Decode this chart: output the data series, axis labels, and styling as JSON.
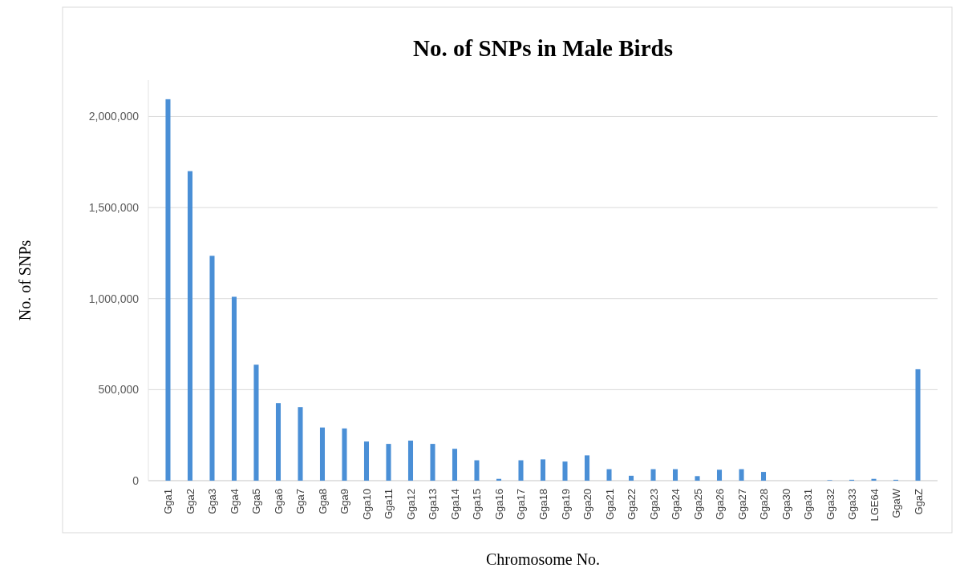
{
  "chart_data": {
    "type": "bar",
    "title": "No. of SNPs in Male Birds",
    "xlabel": "Chromosome No.",
    "ylabel": "No. of SNPs",
    "categories": [
      "Gga1",
      "Gga2",
      "Gga3",
      "Gga4",
      "Gga5",
      "Gga6",
      "Gga7",
      "Gga8",
      "Gga9",
      "Gga10",
      "Gga11",
      "Gga12",
      "Gga13",
      "Gga14",
      "Gga15",
      "Gga16",
      "Gga17",
      "Gga18",
      "Gga19",
      "Gga20",
      "Gga21",
      "Gga22",
      "Gga23",
      "Gga24",
      "Gga25",
      "Gga26",
      "Gga27",
      "Gga28",
      "Gga30",
      "Gga31",
      "Gga32",
      "Gga33",
      "LGE64",
      "GgaW",
      "GgaZ"
    ],
    "values": [
      2095000,
      1700000,
      1235000,
      1010000,
      637000,
      426000,
      404000,
      292000,
      287000,
      215000,
      202000,
      220000,
      202000,
      175000,
      112000,
      10000,
      112000,
      117000,
      105000,
      139000,
      63000,
      27000,
      63000,
      63000,
      25000,
      60000,
      63000,
      48000,
      0,
      0,
      3000,
      5000,
      10000,
      5000,
      612000
    ],
    "color": "#4a8fd6",
    "ylim": [
      0,
      2200000
    ],
    "yticks": [
      {
        "value": 0,
        "label": "0"
      },
      {
        "value": 500000,
        "label": "500,000"
      },
      {
        "value": 1000000,
        "label": "1,000,000"
      },
      {
        "value": 1500000,
        "label": "1,500,000"
      },
      {
        "value": 2000000,
        "label": "2,000,000"
      }
    ],
    "grid": "y"
  }
}
